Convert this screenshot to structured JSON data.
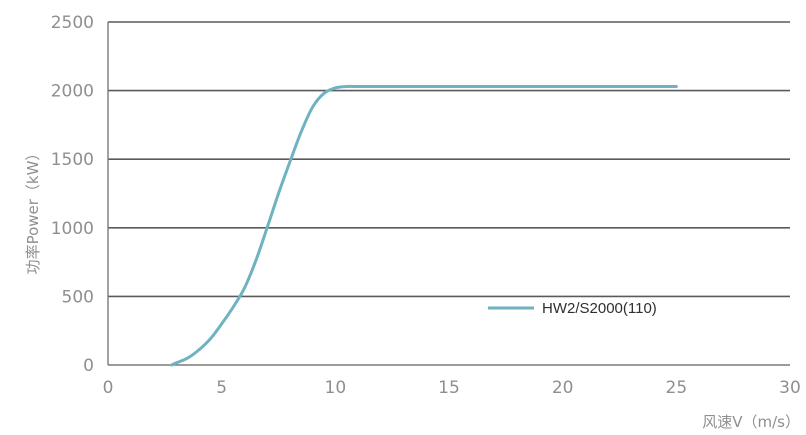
{
  "chart_data": {
    "type": "line",
    "xlabel": "风速V（m/s）",
    "ylabel": "功率Power（kW）",
    "xlim": [
      0,
      30
    ],
    "ylim": [
      0,
      2500
    ],
    "x_ticks": [
      "0",
      "5",
      "10",
      "15",
      "20",
      "25",
      "30"
    ],
    "y_ticks": [
      "0",
      "500",
      "1000",
      "1500",
      "2000",
      "2500"
    ],
    "grid": "horizontal",
    "legend_position": "lower-right",
    "colors": {
      "series": "#6fb2c1",
      "grid": "#5a5a5a",
      "axis": "#7a7a7a",
      "text": "#8f8f8f"
    },
    "series": [
      {
        "name": "HW2/S2000(110)",
        "x": [
          2.8,
          3.0,
          3.5,
          4.0,
          4.5,
          5.0,
          5.5,
          6.0,
          6.5,
          7.0,
          7.5,
          8.0,
          8.5,
          9.0,
          9.5,
          10.0,
          10.5,
          11.0,
          12.0,
          15.0,
          20.0,
          25.0
        ],
        "y": [
          0,
          15,
          50,
          110,
          190,
          300,
          420,
          560,
          760,
          1000,
          1250,
          1480,
          1700,
          1880,
          1980,
          2020,
          2030,
          2030,
          2030,
          2030,
          2030,
          2030
        ]
      }
    ]
  }
}
